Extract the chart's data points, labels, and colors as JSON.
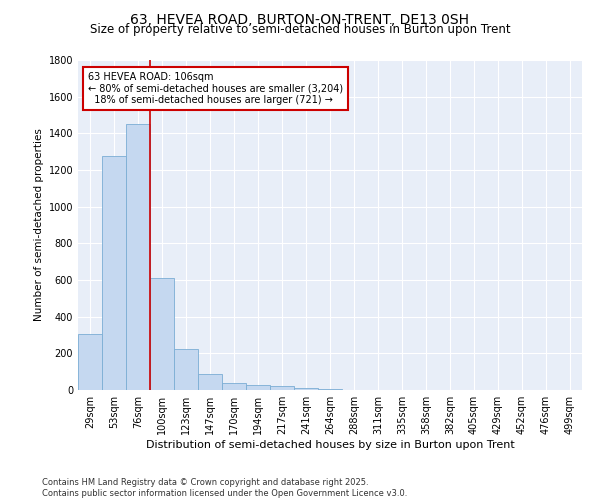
{
  "title": "63, HEVEA ROAD, BURTON-ON-TRENT, DE13 0SH",
  "subtitle": "Size of property relative to semi-detached houses in Burton upon Trent",
  "xlabel": "Distribution of semi-detached houses by size in Burton upon Trent",
  "ylabel": "Number of semi-detached properties",
  "categories": [
    "29sqm",
    "53sqm",
    "76sqm",
    "100sqm",
    "123sqm",
    "147sqm",
    "170sqm",
    "194sqm",
    "217sqm",
    "241sqm",
    "264sqm",
    "288sqm",
    "311sqm",
    "335sqm",
    "358sqm",
    "382sqm",
    "405sqm",
    "429sqm",
    "452sqm",
    "476sqm",
    "499sqm"
  ],
  "values": [
    305,
    1275,
    1450,
    610,
    225,
    90,
    38,
    30,
    20,
    10,
    5,
    2,
    0,
    0,
    0,
    0,
    0,
    0,
    0,
    0,
    0
  ],
  "bar_color": "#c5d8f0",
  "bar_edge_color": "#7badd4",
  "vline_x_idx": 3,
  "vline_color": "#cc0000",
  "annotation_text": "63 HEVEA ROAD: 106sqm\n← 80% of semi-detached houses are smaller (3,204)\n  18% of semi-detached houses are larger (721) →",
  "annotation_box_color": "#cc0000",
  "background_color": "#e8eef8",
  "grid_color": "#ffffff",
  "ylim": [
    0,
    1800
  ],
  "yticks": [
    0,
    200,
    400,
    600,
    800,
    1000,
    1200,
    1400,
    1600,
    1800
  ],
  "footer": "Contains HM Land Registry data © Crown copyright and database right 2025.\nContains public sector information licensed under the Open Government Licence v3.0.",
  "title_fontsize": 10,
  "subtitle_fontsize": 8.5,
  "xlabel_fontsize": 8,
  "ylabel_fontsize": 7.5,
  "tick_fontsize": 7,
  "annotation_fontsize": 7,
  "footer_fontsize": 6
}
